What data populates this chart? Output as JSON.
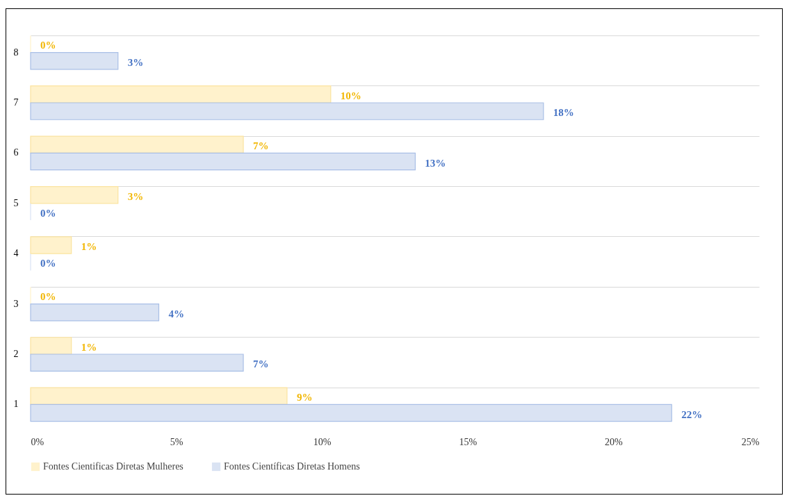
{
  "chart_data": {
    "type": "bar",
    "orientation": "horizontal",
    "categories": [
      "8",
      "7",
      "6",
      "5",
      "4",
      "3",
      "2",
      "1"
    ],
    "series": [
      {
        "name": "Fontes Cientificas Diretas Mulheres",
        "color": "#fff2cc",
        "values": [
          0,
          10.3,
          7.3,
          3,
          1.4,
          0,
          1.4,
          8.8
        ],
        "value_labels": [
          "0%",
          "10%",
          "7%",
          "3%",
          "1%",
          "0%",
          "1%",
          "9%"
        ]
      },
      {
        "name": "Fontes Científicas Diretas Homens",
        "color": "#dae3f3",
        "values": [
          3,
          17.6,
          13.2,
          0,
          0,
          4.4,
          7.3,
          22
        ],
        "value_labels": [
          "3%",
          "18%",
          "13%",
          "0%",
          "0%",
          "4%",
          "7%",
          "22%"
        ]
      }
    ],
    "xlim": [
      0,
      25
    ],
    "xticks": [
      {
        "value": 0,
        "label": "0%"
      },
      {
        "value": 5,
        "label": "5%"
      },
      {
        "value": 10,
        "label": "10%"
      },
      {
        "value": 15,
        "label": "15%"
      },
      {
        "value": 20,
        "label": "20%"
      },
      {
        "value": 25,
        "label": "25%"
      }
    ],
    "grid": "y",
    "legend": "bottom"
  }
}
